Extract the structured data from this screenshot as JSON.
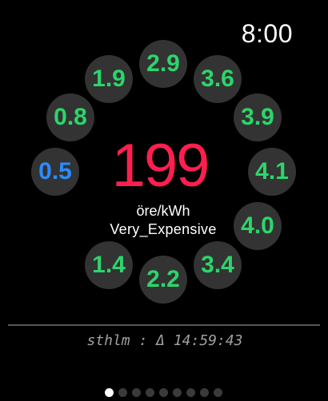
{
  "status_bar": {
    "time": "8:00"
  },
  "colors": {
    "green": "#2bd66a",
    "blue": "#2b8cff",
    "price_red": "#ff1f4f",
    "bubble_bg": "#333333"
  },
  "forecast_bubbles": [
    {
      "value": "0.5",
      "color": "blue"
    },
    {
      "value": "0.8",
      "color": "green"
    },
    {
      "value": "1.9",
      "color": "green"
    },
    {
      "value": "2.9",
      "color": "green"
    },
    {
      "value": "3.6",
      "color": "green"
    },
    {
      "value": "3.9",
      "color": "green"
    },
    {
      "value": "4.1",
      "color": "green"
    },
    {
      "value": "4.0",
      "color": "green"
    },
    {
      "value": "3.4",
      "color": "green"
    },
    {
      "value": "2.2",
      "color": "green"
    },
    {
      "value": "1.4",
      "color": "green"
    }
  ],
  "current": {
    "price": "199",
    "unit": "öre/kWh",
    "level": "Very_Expensive"
  },
  "footer": {
    "text": "sthlm : Δ 14:59:43"
  },
  "pager": {
    "count": 9,
    "active_index": 0
  }
}
